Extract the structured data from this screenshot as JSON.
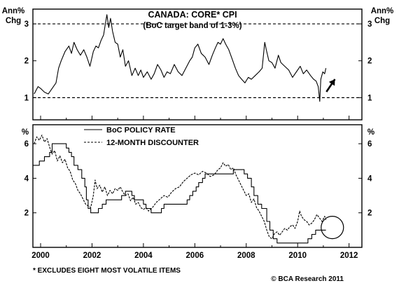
{
  "chart_data": [
    {
      "type": "line",
      "title": "CANADA: CORE* CPI",
      "subtitle": "(BoC target band of 1-3%)",
      "ylabel_left": [
        "Ann%",
        "Chg"
      ],
      "ylabel_right": [
        "Ann%",
        "Chg"
      ],
      "ylim": [
        0.4,
        3.4
      ],
      "yticks": [
        1,
        2,
        3
      ],
      "xlim": [
        1999.7,
        2012.5
      ],
      "grid": false,
      "reference_lines": [
        1,
        3
      ],
      "series": [
        {
          "values": [
            [
              1999.75,
              1.1
            ],
            [
              1999.9,
              1.3
            ],
            [
              2000.0,
              1.25
            ],
            [
              2000.15,
              1.15
            ],
            [
              2000.3,
              1.1
            ],
            [
              2000.45,
              1.25
            ],
            [
              2000.6,
              1.4
            ],
            [
              2000.7,
              1.8
            ],
            [
              2000.8,
              2.0
            ],
            [
              2000.95,
              2.25
            ],
            [
              2001.1,
              2.4
            ],
            [
              2001.2,
              2.2
            ],
            [
              2001.3,
              2.5
            ],
            [
              2001.42,
              2.3
            ],
            [
              2001.55,
              2.15
            ],
            [
              2001.68,
              2.3
            ],
            [
              2001.8,
              2.1
            ],
            [
              2001.92,
              1.85
            ],
            [
              2002.05,
              2.25
            ],
            [
              2002.15,
              2.4
            ],
            [
              2002.25,
              2.35
            ],
            [
              2002.35,
              2.55
            ],
            [
              2002.45,
              2.7
            ],
            [
              2002.52,
              3.0
            ],
            [
              2002.58,
              3.25
            ],
            [
              2002.65,
              2.9
            ],
            [
              2002.72,
              3.15
            ],
            [
              2002.8,
              2.8
            ],
            [
              2002.9,
              2.5
            ],
            [
              2003.0,
              2.45
            ],
            [
              2003.1,
              2.1
            ],
            [
              2003.2,
              2.3
            ],
            [
              2003.3,
              1.85
            ],
            [
              2003.42,
              2.0
            ],
            [
              2003.55,
              1.6
            ],
            [
              2003.68,
              1.8
            ],
            [
              2003.8,
              1.6
            ],
            [
              2003.9,
              1.75
            ],
            [
              2004.0,
              1.55
            ],
            [
              2004.15,
              1.7
            ],
            [
              2004.3,
              1.5
            ],
            [
              2004.42,
              1.65
            ],
            [
              2004.55,
              1.9
            ],
            [
              2004.68,
              1.75
            ],
            [
              2004.8,
              1.55
            ],
            [
              2004.92,
              1.7
            ],
            [
              2005.05,
              1.65
            ],
            [
              2005.2,
              1.9
            ],
            [
              2005.35,
              1.7
            ],
            [
              2005.5,
              1.6
            ],
            [
              2005.65,
              1.8
            ],
            [
              2005.8,
              2.0
            ],
            [
              2005.9,
              2.1
            ],
            [
              2006.0,
              2.35
            ],
            [
              2006.12,
              2.45
            ],
            [
              2006.25,
              2.2
            ],
            [
              2006.4,
              2.1
            ],
            [
              2006.55,
              1.9
            ],
            [
              2006.68,
              2.15
            ],
            [
              2006.8,
              2.35
            ],
            [
              2006.9,
              2.5
            ],
            [
              2007.0,
              2.45
            ],
            [
              2007.1,
              2.6
            ],
            [
              2007.2,
              2.45
            ],
            [
              2007.32,
              2.3
            ],
            [
              2007.45,
              2.05
            ],
            [
              2007.58,
              1.8
            ],
            [
              2007.7,
              1.6
            ],
            [
              2007.82,
              1.5
            ],
            [
              2007.95,
              1.4
            ],
            [
              2008.08,
              1.55
            ],
            [
              2008.2,
              1.5
            ],
            [
              2008.35,
              1.6
            ],
            [
              2008.5,
              1.7
            ],
            [
              2008.62,
              1.8
            ],
            [
              2008.72,
              2.5
            ],
            [
              2008.78,
              2.3
            ],
            [
              2008.88,
              2.0
            ],
            [
              2009.0,
              1.95
            ],
            [
              2009.12,
              1.8
            ],
            [
              2009.25,
              2.15
            ],
            [
              2009.35,
              1.95
            ],
            [
              2009.5,
              1.85
            ],
            [
              2009.65,
              1.75
            ],
            [
              2009.8,
              1.55
            ],
            [
              2009.95,
              1.7
            ],
            [
              2010.1,
              1.85
            ],
            [
              2010.22,
              1.65
            ],
            [
              2010.35,
              1.75
            ],
            [
              2010.5,
              1.6
            ],
            [
              2010.62,
              1.5
            ],
            [
              2010.72,
              1.45
            ],
            [
              2010.8,
              1.3
            ],
            [
              2010.86,
              0.9
            ],
            [
              2010.9,
              1.5
            ],
            [
              2010.98,
              1.7
            ],
            [
              2011.05,
              1.65
            ],
            [
              2011.1,
              1.8
            ]
          ]
        }
      ],
      "arrow": {
        "from": [
          2011.12,
          1.16
        ],
        "to": [
          2011.45,
          1.5
        ]
      }
    },
    {
      "type": "line",
      "ylabel_left": "%",
      "ylabel_right": "%",
      "ylim": [
        0,
        7.1
      ],
      "yticks": [
        2,
        4,
        6
      ],
      "xlim": [
        1999.7,
        2012.5
      ],
      "xticks": [
        2000,
        2002,
        2004,
        2006,
        2008,
        2010,
        2012
      ],
      "grid": false,
      "legend": {
        "placement": "top-left",
        "entries": [
          "BoC POLICY RATE",
          "12-MONTH DISCOUNTER"
        ]
      },
      "series": [
        {
          "name": "BoC POLICY RATE",
          "step": true,
          "values": [
            [
              1999.7,
              4.75
            ],
            [
              1999.95,
              5.0
            ],
            [
              2000.15,
              5.25
            ],
            [
              2000.35,
              5.5
            ],
            [
              2000.45,
              6.0
            ],
            [
              2000.6,
              6.0
            ],
            [
              2000.9,
              6.0
            ],
            [
              2001.0,
              5.75
            ],
            [
              2001.1,
              5.5
            ],
            [
              2001.2,
              5.25
            ],
            [
              2001.3,
              4.75
            ],
            [
              2001.45,
              4.5
            ],
            [
              2001.6,
              4.0
            ],
            [
              2001.72,
              3.5
            ],
            [
              2001.78,
              2.75
            ],
            [
              2001.85,
              2.25
            ],
            [
              2001.95,
              2.0
            ],
            [
              2002.25,
              2.25
            ],
            [
              2002.4,
              2.5
            ],
            [
              2002.55,
              2.75
            ],
            [
              2003.15,
              3.0
            ],
            [
              2003.3,
              3.25
            ],
            [
              2003.55,
              3.0
            ],
            [
              2003.65,
              2.75
            ],
            [
              2004.0,
              2.5
            ],
            [
              2004.1,
              2.25
            ],
            [
              2004.3,
              2.0
            ],
            [
              2004.7,
              2.25
            ],
            [
              2004.8,
              2.5
            ],
            [
              2005.7,
              2.75
            ],
            [
              2005.8,
              3.0
            ],
            [
              2005.92,
              3.25
            ],
            [
              2006.05,
              3.5
            ],
            [
              2006.15,
              3.75
            ],
            [
              2006.3,
              4.0
            ],
            [
              2006.4,
              4.25
            ],
            [
              2007.5,
              4.5
            ],
            [
              2007.92,
              4.25
            ],
            [
              2008.05,
              4.0
            ],
            [
              2008.2,
              3.5
            ],
            [
              2008.3,
              3.0
            ],
            [
              2008.45,
              2.5
            ],
            [
              2008.6,
              2.25
            ],
            [
              2008.8,
              1.5
            ],
            [
              2008.92,
              1.0
            ],
            [
              2009.05,
              0.5
            ],
            [
              2009.2,
              0.25
            ],
            [
              2010.4,
              0.5
            ],
            [
              2010.55,
              0.75
            ],
            [
              2010.7,
              1.0
            ],
            [
              2011.1,
              1.0
            ]
          ]
        },
        {
          "name": "12-MONTH DISCOUNTER",
          "dashed": true,
          "values": [
            [
              1999.75,
              6.0
            ],
            [
              1999.85,
              6.4
            ],
            [
              1999.95,
              6.2
            ],
            [
              2000.05,
              6.5
            ],
            [
              2000.15,
              6.1
            ],
            [
              2000.25,
              6.3
            ],
            [
              2000.35,
              5.8
            ],
            [
              2000.45,
              5.4
            ],
            [
              2000.55,
              5.6
            ],
            [
              2000.65,
              5.0
            ],
            [
              2000.75,
              5.3
            ],
            [
              2000.85,
              4.9
            ],
            [
              2000.95,
              5.1
            ],
            [
              2001.05,
              4.6
            ],
            [
              2001.15,
              4.4
            ],
            [
              2001.25,
              3.9
            ],
            [
              2001.35,
              3.7
            ],
            [
              2001.45,
              3.3
            ],
            [
              2001.55,
              3.1
            ],
            [
              2001.65,
              2.8
            ],
            [
              2001.75,
              2.5
            ],
            [
              2001.85,
              2.4
            ],
            [
              2001.95,
              2.3
            ],
            [
              2002.05,
              3.0
            ],
            [
              2002.12,
              3.9
            ],
            [
              2002.2,
              3.4
            ],
            [
              2002.3,
              3.6
            ],
            [
              2002.4,
              3.2
            ],
            [
              2002.5,
              3.5
            ],
            [
              2002.6,
              3.0
            ],
            [
              2002.7,
              3.3
            ],
            [
              2002.8,
              3.1
            ],
            [
              2002.9,
              3.4
            ],
            [
              2003.0,
              3.3
            ],
            [
              2003.1,
              3.5
            ],
            [
              2003.2,
              3.2
            ],
            [
              2003.3,
              3.0
            ],
            [
              2003.4,
              3.1
            ],
            [
              2003.5,
              2.7
            ],
            [
              2003.6,
              2.9
            ],
            [
              2003.7,
              2.5
            ],
            [
              2003.8,
              2.6
            ],
            [
              2003.9,
              2.3
            ],
            [
              2004.0,
              2.2
            ],
            [
              2004.1,
              2.3
            ],
            [
              2004.2,
              2.1
            ],
            [
              2004.35,
              2.3
            ],
            [
              2004.5,
              2.6
            ],
            [
              2004.65,
              2.8
            ],
            [
              2004.8,
              3.0
            ],
            [
              2004.95,
              2.9
            ],
            [
              2005.1,
              3.2
            ],
            [
              2005.25,
              3.4
            ],
            [
              2005.4,
              3.5
            ],
            [
              2005.55,
              3.8
            ],
            [
              2005.7,
              4.0
            ],
            [
              2005.85,
              4.2
            ],
            [
              2006.0,
              4.3
            ],
            [
              2006.15,
              4.2
            ],
            [
              2006.3,
              4.4
            ],
            [
              2006.45,
              4.3
            ],
            [
              2006.6,
              4.1
            ],
            [
              2006.75,
              4.2
            ],
            [
              2006.9,
              4.5
            ],
            [
              2007.0,
              4.6
            ],
            [
              2007.1,
              4.9
            ],
            [
              2007.2,
              4.7
            ],
            [
              2007.3,
              4.8
            ],
            [
              2007.4,
              4.5
            ],
            [
              2007.5,
              4.6
            ],
            [
              2007.6,
              4.2
            ],
            [
              2007.7,
              3.9
            ],
            [
              2007.8,
              3.6
            ],
            [
              2007.9,
              3.3
            ],
            [
              2008.0,
              3.0
            ],
            [
              2008.1,
              3.1
            ],
            [
              2008.2,
              2.6
            ],
            [
              2008.3,
              2.8
            ],
            [
              2008.4,
              2.3
            ],
            [
              2008.5,
              2.1
            ],
            [
              2008.6,
              1.8
            ],
            [
              2008.7,
              1.5
            ],
            [
              2008.8,
              1.0
            ],
            [
              2008.9,
              0.6
            ],
            [
              2009.0,
              0.5
            ],
            [
              2009.1,
              0.8
            ],
            [
              2009.2,
              0.9
            ],
            [
              2009.3,
              0.7
            ],
            [
              2009.4,
              0.9
            ],
            [
              2009.5,
              1.1
            ],
            [
              2009.6,
              1.0
            ],
            [
              2009.7,
              1.2
            ],
            [
              2009.8,
              1.3
            ],
            [
              2009.9,
              1.1
            ],
            [
              2010.0,
              1.5
            ],
            [
              2010.08,
              2.1
            ],
            [
              2010.15,
              1.8
            ],
            [
              2010.25,
              1.6
            ],
            [
              2010.35,
              1.5
            ],
            [
              2010.45,
              1.3
            ],
            [
              2010.55,
              1.4
            ],
            [
              2010.65,
              1.6
            ],
            [
              2010.75,
              1.9
            ],
            [
              2010.85,
              1.7
            ],
            [
              2010.95,
              1.5
            ],
            [
              2011.05,
              1.8
            ],
            [
              2011.1,
              1.6
            ]
          ]
        }
      ],
      "annotation": {
        "type": "circle",
        "center": [
          2011.35,
          1.15
        ]
      }
    }
  ],
  "footer": {
    "note": "* EXCLUDES EIGHT MOST VOLATILE ITEMS",
    "credit": "© BCA Research 2011"
  }
}
